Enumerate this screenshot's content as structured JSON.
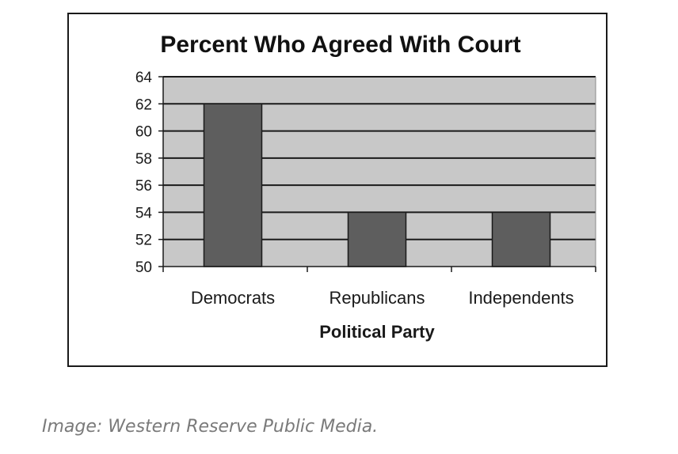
{
  "chart_data": {
    "type": "bar",
    "title": "Percent Who Agreed With Court",
    "xlabel": "Political Party",
    "ylabel": "",
    "categories": [
      "Democrats",
      "Republicans",
      "Independents"
    ],
    "values": [
      62,
      54,
      54
    ],
    "ylim": [
      50,
      64
    ],
    "yticks": [
      "50",
      "52",
      "54",
      "56",
      "58",
      "60",
      "62",
      "64"
    ],
    "grid": true,
    "legend": "none",
    "colors": {
      "bar": "#5e5e5e",
      "plot_background": "#c8c8c8",
      "gridline": "#1a1a1a"
    }
  },
  "caption": "Image: Western Reserve Public Media."
}
